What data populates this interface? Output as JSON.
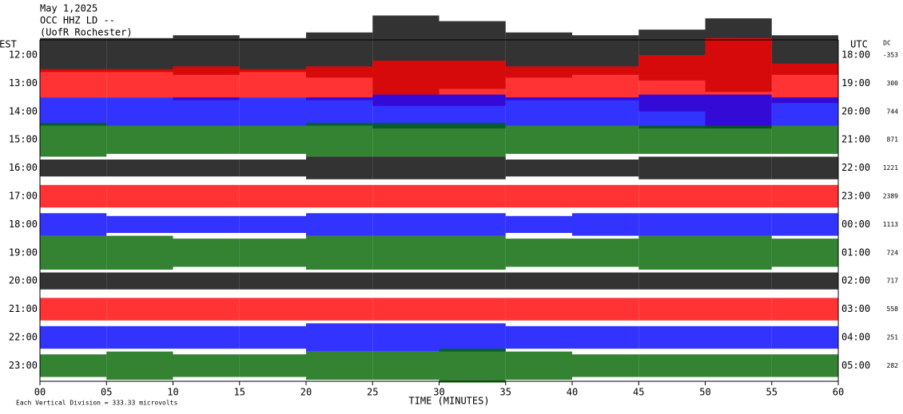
{
  "chart_data": {
    "type": "helicorder",
    "header": [
      "May 1,2025",
      "OCC HHZ LD --",
      "(UofR Rochester)"
    ],
    "left_label": "EST",
    "right_label": "UTC",
    "dc_label": "DC",
    "xlabel": "TIME (MINUTES)",
    "footer": "Each Vertical Division =  333.33 microvolts",
    "xlim": [
      0,
      60
    ],
    "xticks": [
      {
        "value": 0,
        "label": "00"
      },
      {
        "value": 5,
        "label": "05"
      },
      10,
      15,
      20,
      25,
      30,
      35,
      40,
      45,
      50,
      55,
      60
    ],
    "bins": [
      0,
      5,
      10,
      15,
      20,
      25,
      30,
      35,
      40,
      45,
      50,
      55,
      60
    ],
    "rows": [
      {
        "est": "12:00",
        "utc": "18:00",
        "dc": -353,
        "color": "#000000",
        "amplitude": [
          0.6,
          0.6,
          0.7,
          0.6,
          0.8,
          1.4,
          1.2,
          0.8,
          0.7,
          0.9,
          1.3,
          0.7
        ]
      },
      {
        "est": "13:00",
        "utc": "19:00",
        "dc": 300,
        "color": "#ff0000",
        "amplitude": [
          0.5,
          0.5,
          0.6,
          0.5,
          0.6,
          0.8,
          0.8,
          0.6,
          0.6,
          1.0,
          1.6,
          0.7
        ]
      },
      {
        "est": "14:00",
        "utc": "20:00",
        "dc": 744,
        "color": "#0000ff",
        "amplitude": [
          0.5,
          0.5,
          0.5,
          0.5,
          0.5,
          0.6,
          0.6,
          0.5,
          0.5,
          0.6,
          0.6,
          0.5
        ]
      },
      {
        "est": "15:00",
        "utc": "21:00",
        "dc": 871,
        "color": "#006400",
        "amplitude": [
          0.6,
          0.5,
          0.5,
          0.5,
          0.6,
          0.6,
          0.6,
          0.5,
          0.5,
          0.5,
          0.5,
          0.5
        ]
      },
      {
        "est": "16:00",
        "utc": "22:00",
        "dc": 1221,
        "color": "#000000",
        "amplitude": [
          0.3,
          0.3,
          0.3,
          0.3,
          0.4,
          0.4,
          0.4,
          0.3,
          0.3,
          0.4,
          0.4,
          0.4
        ]
      },
      {
        "est": "17:00",
        "utc": "23:00",
        "dc": 2389,
        "color": "#ff0000",
        "amplitude": [
          0.4,
          0.4,
          0.4,
          0.4,
          0.4,
          0.4,
          0.4,
          0.4,
          0.4,
          0.4,
          0.4,
          0.4
        ]
      },
      {
        "est": "18:00",
        "utc": "00:00",
        "dc": 1113,
        "color": "#0000ff",
        "amplitude": [
          0.4,
          0.3,
          0.3,
          0.3,
          0.4,
          0.4,
          0.4,
          0.3,
          0.4,
          0.4,
          0.4,
          0.4
        ]
      },
      {
        "est": "19:00",
        "utc": "01:00",
        "dc": 724,
        "color": "#006400",
        "amplitude": [
          0.6,
          0.6,
          0.5,
          0.5,
          0.6,
          0.6,
          0.6,
          0.5,
          0.5,
          0.6,
          0.6,
          0.5
        ]
      },
      {
        "est": "20:00",
        "utc": "02:00",
        "dc": 717,
        "color": "#000000",
        "amplitude": [
          0.3,
          0.3,
          0.3,
          0.3,
          0.3,
          0.3,
          0.3,
          0.3,
          0.3,
          0.3,
          0.3,
          0.3
        ]
      },
      {
        "est": "21:00",
        "utc": "03:00",
        "dc": 558,
        "color": "#ff0000",
        "amplitude": [
          0.4,
          0.4,
          0.4,
          0.4,
          0.4,
          0.4,
          0.4,
          0.4,
          0.4,
          0.4,
          0.4,
          0.4
        ]
      },
      {
        "est": "22:00",
        "utc": "04:00",
        "dc": 251,
        "color": "#0000ff",
        "amplitude": [
          0.4,
          0.4,
          0.4,
          0.4,
          0.5,
          0.5,
          0.5,
          0.4,
          0.4,
          0.4,
          0.4,
          0.4
        ]
      },
      {
        "est": "23:00",
        "utc": "05:00",
        "dc": 282,
        "color": "#006400",
        "amplitude": [
          0.4,
          0.5,
          0.4,
          0.4,
          0.5,
          0.5,
          0.6,
          0.5,
          0.4,
          0.4,
          0.4,
          0.4
        ]
      }
    ]
  }
}
